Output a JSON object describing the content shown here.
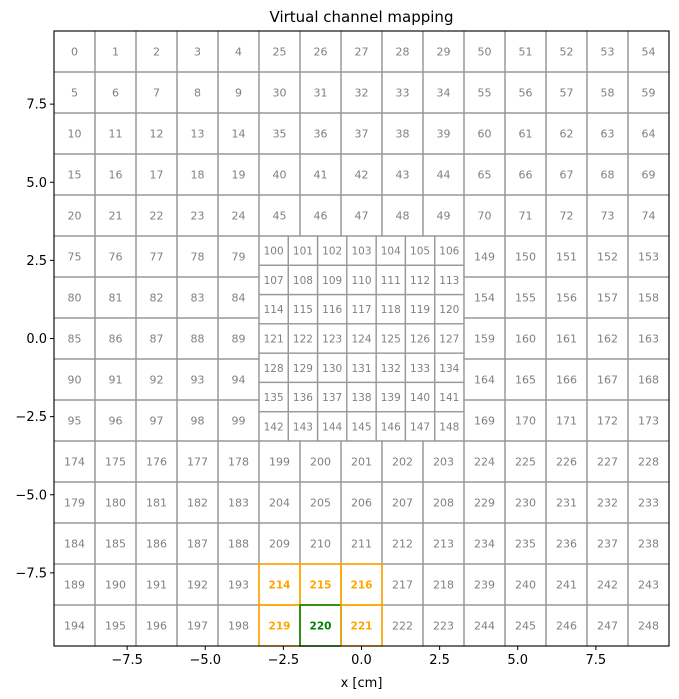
{
  "chart_data": {
    "type": "heatmap",
    "title": "Virtual channel mapping",
    "xlabel": "x [cm]",
    "ylabel": "",
    "xlim": [
      -9.84,
      9.84
    ],
    "ylim": [
      -9.84,
      9.84
    ],
    "xticks": [
      -7.5,
      -5.0,
      -2.5,
      0.0,
      2.5,
      5.0,
      7.5
    ],
    "yticks": [
      -7.5,
      -5.0,
      -2.5,
      0.0,
      2.5,
      5.0,
      7.5
    ],
    "xtick_labels": [
      "−7.5",
      "−5.0",
      "−2.5",
      "0.0",
      "2.5",
      "5.0",
      "7.5"
    ],
    "ytick_labels": [
      "−7.5",
      "−5.0",
      "−2.5",
      "0.0",
      "2.5",
      "5.0",
      "7.5"
    ],
    "grid": false,
    "colors": {
      "default_edge": "#999999",
      "default_text": "#808080",
      "neighbor": "#ffa500",
      "selected": "#008000"
    },
    "outer_pitch": 1.312,
    "inner_pitch": 0.937,
    "outer_channels": [
      [
        0,
        1,
        2,
        3,
        4,
        25,
        26,
        27,
        28,
        29,
        50,
        51,
        52,
        53,
        54
      ],
      [
        5,
        6,
        7,
        8,
        9,
        30,
        31,
        32,
        33,
        34,
        55,
        56,
        57,
        58,
        59
      ],
      [
        10,
        11,
        12,
        13,
        14,
        35,
        36,
        37,
        38,
        39,
        60,
        61,
        62,
        63,
        64
      ],
      [
        15,
        16,
        17,
        18,
        19,
        40,
        41,
        42,
        43,
        44,
        65,
        66,
        67,
        68,
        69
      ],
      [
        20,
        21,
        22,
        23,
        24,
        45,
        46,
        47,
        48,
        49,
        70,
        71,
        72,
        73,
        74
      ],
      [
        75,
        76,
        77,
        78,
        79,
        null,
        null,
        null,
        null,
        null,
        149,
        150,
        151,
        152,
        153
      ],
      [
        80,
        81,
        82,
        83,
        84,
        null,
        null,
        null,
        null,
        null,
        154,
        155,
        156,
        157,
        158
      ],
      [
        85,
        86,
        87,
        88,
        89,
        null,
        null,
        null,
        null,
        null,
        159,
        160,
        161,
        162,
        163
      ],
      [
        90,
        91,
        92,
        93,
        94,
        null,
        null,
        null,
        null,
        null,
        164,
        165,
        166,
        167,
        168
      ],
      [
        95,
        96,
        97,
        98,
        99,
        null,
        null,
        null,
        null,
        null,
        169,
        170,
        171,
        172,
        173
      ],
      [
        174,
        175,
        176,
        177,
        178,
        199,
        200,
        201,
        202,
        203,
        224,
        225,
        226,
        227,
        228
      ],
      [
        179,
        180,
        181,
        182,
        183,
        204,
        205,
        206,
        207,
        208,
        229,
        230,
        231,
        232,
        233
      ],
      [
        184,
        185,
        186,
        187,
        188,
        209,
        210,
        211,
        212,
        213,
        234,
        235,
        236,
        237,
        238
      ],
      [
        189,
        190,
        191,
        192,
        193,
        214,
        215,
        216,
        217,
        218,
        239,
        240,
        241,
        242,
        243
      ],
      [
        194,
        195,
        196,
        197,
        198,
        219,
        220,
        221,
        222,
        223,
        244,
        245,
        246,
        247,
        248
      ]
    ],
    "inner_channels": [
      [
        100,
        101,
        102,
        103,
        104,
        105,
        106
      ],
      [
        107,
        108,
        109,
        110,
        111,
        112,
        113
      ],
      [
        114,
        115,
        116,
        117,
        118,
        119,
        120
      ],
      [
        121,
        122,
        123,
        124,
        125,
        126,
        127
      ],
      [
        128,
        129,
        130,
        131,
        132,
        133,
        134
      ],
      [
        135,
        136,
        137,
        138,
        139,
        140,
        141
      ],
      [
        142,
        143,
        144,
        145,
        146,
        147,
        148
      ]
    ],
    "selected_channel": 220,
    "neighbor_channels": [
      214,
      215,
      216,
      219,
      221
    ]
  }
}
